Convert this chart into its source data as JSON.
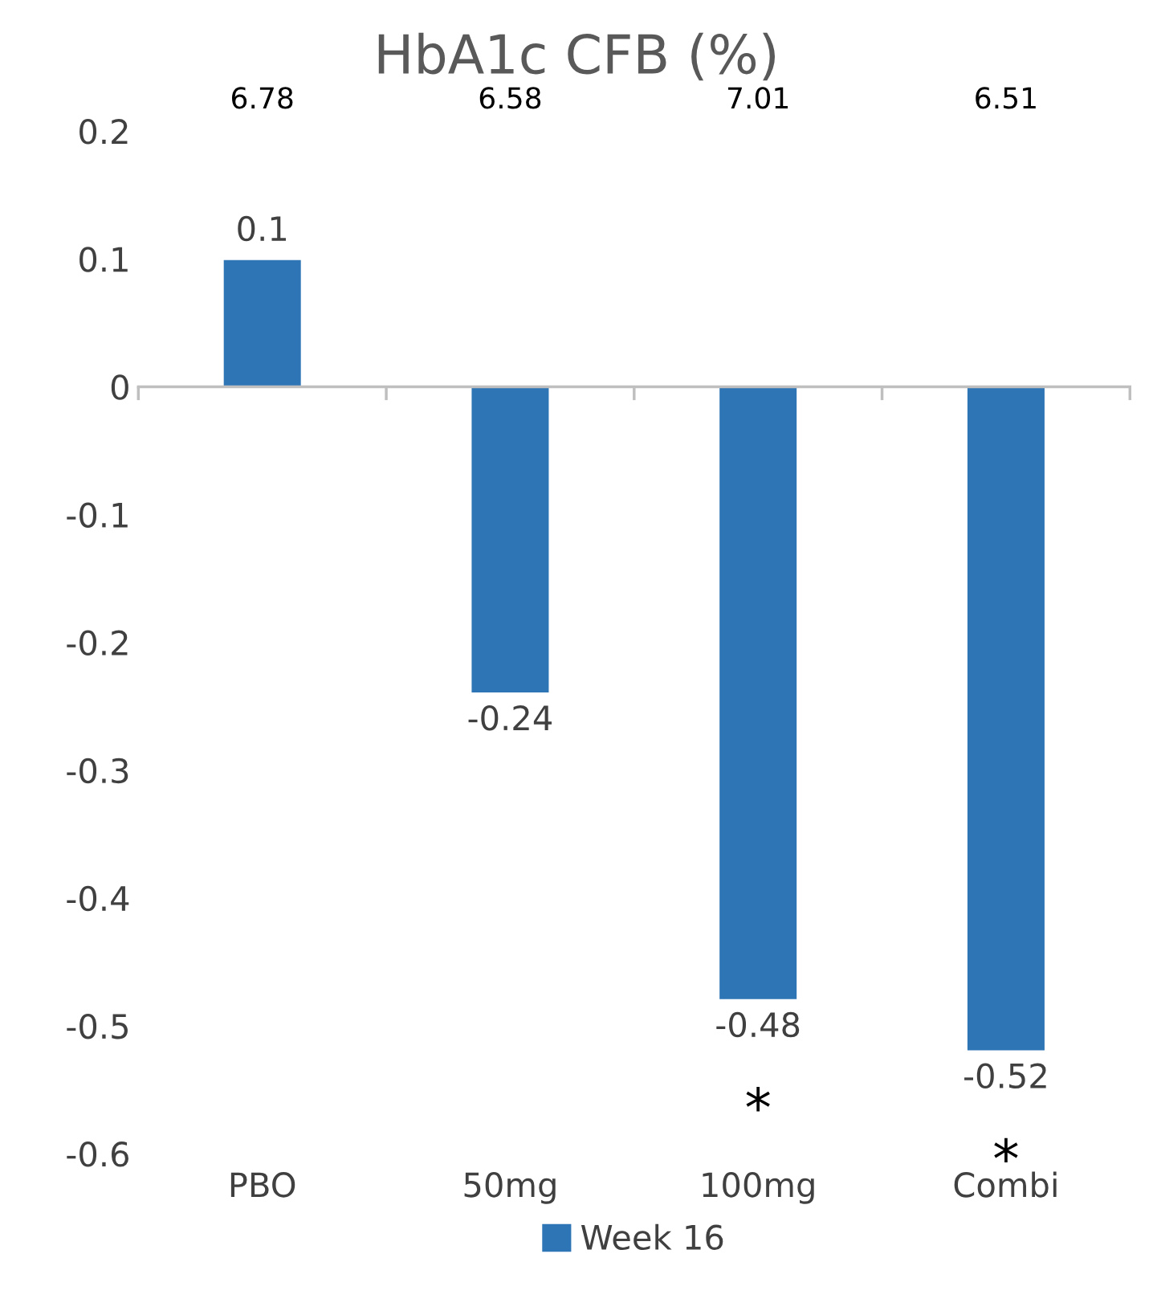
{
  "chart_data": {
    "type": "bar",
    "title": "HbA1c CFB (%)",
    "categories": [
      "PBO",
      "50mg",
      "100mg",
      "Combi"
    ],
    "series": [
      {
        "name": "Week 16",
        "color": "#2e75b6",
        "values": [
          0.1,
          -0.24,
          -0.48,
          -0.52
        ]
      }
    ],
    "ylim": [
      -0.6,
      0.2
    ],
    "yticks": [
      {
        "value": -0.6,
        "label": "-0.6"
      },
      {
        "value": -0.5,
        "label": "-0.5"
      },
      {
        "value": -0.4,
        "label": "-0.4"
      },
      {
        "value": -0.3,
        "label": "-0.3"
      },
      {
        "value": -0.2,
        "label": "-0.2"
      },
      {
        "value": -0.1,
        "label": "-0.1"
      },
      0,
      0.1,
      0.2
    ],
    "data_labels": true,
    "legend": "bottom",
    "annotations": [
      "6.78",
      "6.58",
      "7.01",
      "6.51",
      "*",
      "*"
    ]
  }
}
